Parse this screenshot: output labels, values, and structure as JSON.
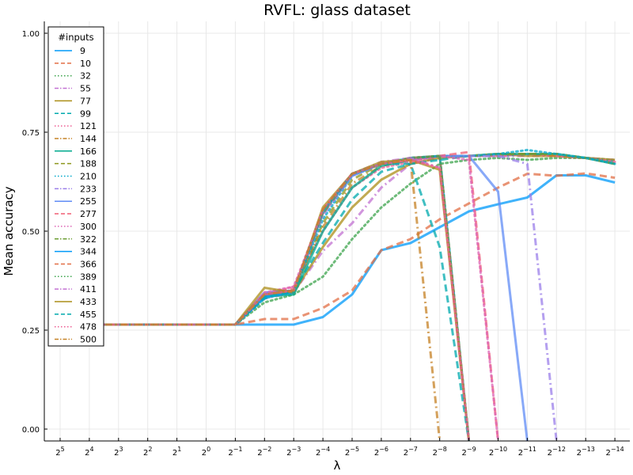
{
  "chart_data": {
    "type": "line",
    "title": "RVFL: glass dataset",
    "xlabel": "λ",
    "ylabel": "Mean accuracy",
    "ylim": [
      -0.03,
      1.03
    ],
    "y_ticks": [
      0.0,
      0.25,
      0.5,
      0.75,
      1.0
    ],
    "y_tick_labels": [
      "0.00",
      "0.25",
      "0.50",
      "0.75",
      "1.00"
    ],
    "x_tick_labels": [
      {
        "base": "2",
        "exp": "5"
      },
      {
        "base": "2",
        "exp": "4"
      },
      {
        "base": "2",
        "exp": "3"
      },
      {
        "base": "2",
        "exp": "2"
      },
      {
        "base": "2",
        "exp": "1"
      },
      {
        "base": "2",
        "exp": "0"
      },
      {
        "base": "2",
        "exp": "−1"
      },
      {
        "base": "2",
        "exp": "−2"
      },
      {
        "base": "2",
        "exp": "−3"
      },
      {
        "base": "2",
        "exp": "−4"
      },
      {
        "base": "2",
        "exp": "−5"
      },
      {
        "base": "2",
        "exp": "−6"
      },
      {
        "base": "2",
        "exp": "−7"
      },
      {
        "base": "2",
        "exp": "−8"
      },
      {
        "base": "2",
        "exp": "−9"
      },
      {
        "base": "2",
        "exp": "−10"
      },
      {
        "base": "2",
        "exp": "−11"
      },
      {
        "base": "2",
        "exp": "−12"
      },
      {
        "base": "2",
        "exp": "−13"
      },
      {
        "base": "2",
        "exp": "−14"
      }
    ],
    "x": [
      5,
      4,
      3,
      2,
      1,
      0,
      -1,
      -2,
      -3,
      -4,
      -5,
      -6,
      -7,
      -8,
      -9,
      -10,
      -11,
      -12,
      -13,
      -14
    ],
    "x_is_log2_exponent": true,
    "grid": true,
    "legend_title": "#inputs",
    "legend_position": "top-left",
    "series": [
      {
        "name": "9",
        "color": "#009af9",
        "dash": "solid",
        "values": [
          0.264,
          0.264,
          0.264,
          0.264,
          0.264,
          0.264,
          0.264,
          0.264,
          0.264,
          0.283,
          0.34,
          0.452,
          0.47,
          0.51,
          0.55,
          0.568,
          0.585,
          0.641,
          0.641,
          0.623
        ]
      },
      {
        "name": "10",
        "color": "#e26f46",
        "dash": "dash",
        "values": [
          0.264,
          0.264,
          0.264,
          0.264,
          0.264,
          0.264,
          0.264,
          0.278,
          0.278,
          0.306,
          0.35,
          0.452,
          0.48,
          0.53,
          0.57,
          0.61,
          0.645,
          0.64,
          0.646,
          0.635
        ]
      },
      {
        "name": "32",
        "color": "#3da44d",
        "dash": "dot",
        "values": [
          0.264,
          0.264,
          0.264,
          0.264,
          0.264,
          0.264,
          0.264,
          0.32,
          0.34,
          0.385,
          0.48,
          0.56,
          0.62,
          0.67,
          0.68,
          0.685,
          0.68,
          0.685,
          0.685,
          0.68
        ]
      },
      {
        "name": "55",
        "color": "#c271d2",
        "dash": "dashdot",
        "values": [
          0.264,
          0.264,
          0.264,
          0.264,
          0.264,
          0.264,
          0.264,
          0.33,
          0.345,
          0.45,
          0.52,
          0.61,
          0.67,
          0.685,
          0.69,
          0.69,
          0.69,
          0.69,
          0.685,
          0.68
        ]
      },
      {
        "name": "77",
        "color": "#ac8e18",
        "dash": "solid",
        "values": [
          0.264,
          0.264,
          0.264,
          0.264,
          0.264,
          0.264,
          0.264,
          0.34,
          0.345,
          0.46,
          0.56,
          0.63,
          0.67,
          0.685,
          0.69,
          0.695,
          0.69,
          0.69,
          0.685,
          0.68
        ]
      },
      {
        "name": "99",
        "color": "#00a9ad",
        "dash": "dash",
        "values": [
          0.264,
          0.264,
          0.264,
          0.264,
          0.264,
          0.264,
          0.264,
          0.33,
          0.35,
          0.47,
          0.58,
          0.65,
          0.67,
          0.68,
          0.69,
          0.69,
          0.695,
          0.695,
          0.685,
          0.675
        ]
      },
      {
        "name": "121",
        "color": "#ed5e93",
        "dash": "dot",
        "values": [
          0.264,
          0.264,
          0.264,
          0.264,
          0.264,
          0.264,
          0.264,
          0.34,
          0.36,
          0.5,
          0.61,
          0.66,
          0.675,
          0.69,
          0.69,
          0.69,
          0.695,
          0.69,
          0.685,
          0.675
        ]
      },
      {
        "name": "144",
        "color": "#c68225",
        "dash": "dashdot",
        "values": [
          0.264,
          0.264,
          0.264,
          0.264,
          0.264,
          0.264,
          0.264,
          0.34,
          0.35,
          0.51,
          0.62,
          0.665,
          0.68,
          0.69,
          0.69,
          0.695,
          0.695,
          0.69,
          0.685,
          0.67
        ]
      },
      {
        "name": "166",
        "color": "#00a98d",
        "dash": "solid",
        "values": [
          0.264,
          0.264,
          0.264,
          0.264,
          0.264,
          0.264,
          0.264,
          0.335,
          0.34,
          0.5,
          0.61,
          0.665,
          0.68,
          0.69,
          0.69,
          0.695,
          0.695,
          0.695,
          0.685,
          0.67
        ]
      },
      {
        "name": "188",
        "color": "#8e971d",
        "dash": "dash",
        "values": [
          0.264,
          0.264,
          0.264,
          0.264,
          0.264,
          0.264,
          0.264,
          0.34,
          0.35,
          0.52,
          0.63,
          0.67,
          0.68,
          0.69,
          0.69,
          0.695,
          0.695,
          0.695,
          0.685,
          0.67
        ]
      },
      {
        "name": "210",
        "color": "#00a8cb",
        "dash": "dot",
        "values": [
          0.264,
          0.264,
          0.264,
          0.264,
          0.264,
          0.264,
          0.264,
          0.33,
          0.35,
          0.53,
          0.64,
          0.67,
          0.68,
          0.69,
          0.69,
          0.695,
          0.705,
          0.695,
          0.685,
          0.67
        ]
      },
      {
        "name": "233",
        "color": "#9b7fe9",
        "dash": "dashdot",
        "values": [
          0.264,
          0.264,
          0.264,
          0.264,
          0.264,
          0.264,
          0.264,
          0.345,
          0.35,
          0.54,
          0.64,
          0.67,
          0.68,
          0.69,
          0.69,
          0.69,
          0.67,
          -0.03,
          null,
          null
        ]
      },
      {
        "name": "255",
        "color": "#608cf6",
        "dash": "solid",
        "values": [
          0.264,
          0.264,
          0.264,
          0.264,
          0.264,
          0.264,
          0.264,
          0.345,
          0.35,
          0.545,
          0.64,
          0.67,
          0.68,
          0.69,
          0.69,
          0.6,
          -0.03,
          null,
          null,
          null
        ]
      },
      {
        "name": "277",
        "color": "#f05f73",
        "dash": "dash",
        "values": [
          0.264,
          0.264,
          0.264,
          0.264,
          0.264,
          0.264,
          0.264,
          0.34,
          0.355,
          0.545,
          0.645,
          0.67,
          0.68,
          0.69,
          0.7,
          -0.03,
          null,
          null,
          null,
          null
        ]
      },
      {
        "name": "300",
        "color": "#dd64b5",
        "dash": "dot",
        "values": [
          0.264,
          0.264,
          0.264,
          0.264,
          0.264,
          0.264,
          0.264,
          0.345,
          0.36,
          0.55,
          0.645,
          0.67,
          0.68,
          0.69,
          0.68,
          -0.03,
          null,
          null,
          null,
          null
        ]
      },
      {
        "name": "322",
        "color": "#6b9e32",
        "dash": "dashdot",
        "values": [
          0.264,
          0.264,
          0.264,
          0.264,
          0.264,
          0.264,
          0.264,
          0.34,
          0.35,
          0.545,
          0.645,
          0.67,
          0.685,
          0.69,
          -0.03,
          null,
          null,
          null,
          null,
          null
        ]
      },
      {
        "name": "344",
        "color": "#009af9",
        "dash": "solid",
        "values": [
          0.264,
          0.264,
          0.264,
          0.264,
          0.264,
          0.264,
          0.264,
          0.335,
          0.345,
          0.55,
          0.645,
          0.67,
          0.685,
          0.69,
          -0.03,
          null,
          null,
          null,
          null,
          null
        ]
      },
      {
        "name": "366",
        "color": "#e26f46",
        "dash": "dash",
        "values": [
          0.264,
          0.264,
          0.264,
          0.264,
          0.264,
          0.264,
          0.264,
          0.34,
          0.35,
          0.55,
          0.645,
          0.67,
          0.685,
          0.69,
          -0.03,
          null,
          null,
          null,
          null,
          null
        ]
      },
      {
        "name": "389",
        "color": "#3da44d",
        "dash": "dot",
        "values": [
          0.264,
          0.264,
          0.264,
          0.264,
          0.264,
          0.264,
          0.264,
          0.34,
          0.35,
          0.55,
          0.645,
          0.67,
          0.685,
          0.69,
          -0.03,
          null,
          null,
          null,
          null,
          null
        ]
      },
      {
        "name": "411",
        "color": "#c271d2",
        "dash": "dashdot",
        "values": [
          0.264,
          0.264,
          0.264,
          0.264,
          0.264,
          0.264,
          0.264,
          0.34,
          0.35,
          0.55,
          0.645,
          0.675,
          0.685,
          0.66,
          -0.03,
          null,
          null,
          null,
          null,
          null
        ]
      },
      {
        "name": "433",
        "color": "#ac8e18",
        "dash": "solid",
        "values": [
          0.264,
          0.264,
          0.264,
          0.264,
          0.264,
          0.264,
          0.264,
          0.357,
          0.345,
          0.56,
          0.645,
          0.675,
          0.68,
          0.655,
          -0.03,
          null,
          null,
          null,
          null,
          null
        ]
      },
      {
        "name": "455",
        "color": "#00a9ad",
        "dash": "dash",
        "values": [
          0.264,
          0.264,
          0.264,
          0.264,
          0.264,
          0.264,
          0.264,
          0.335,
          0.345,
          0.55,
          0.645,
          0.67,
          0.67,
          0.46,
          -0.03,
          null,
          null,
          null,
          null,
          null
        ]
      },
      {
        "name": "478",
        "color": "#ed5e93",
        "dash": "dot",
        "values": [
          0.264,
          0.264,
          0.264,
          0.264,
          0.264,
          0.264,
          0.264,
          0.34,
          0.35,
          0.555,
          0.645,
          0.67,
          0.68,
          0.66,
          -0.03,
          null,
          null,
          null,
          null,
          null
        ]
      },
      {
        "name": "500",
        "color": "#c68225",
        "dash": "dashdot",
        "values": [
          0.264,
          0.264,
          0.264,
          0.264,
          0.264,
          0.264,
          0.264,
          0.34,
          0.35,
          0.555,
          0.645,
          0.67,
          0.68,
          -0.03,
          null,
          null,
          null,
          null,
          null,
          null
        ]
      }
    ]
  }
}
